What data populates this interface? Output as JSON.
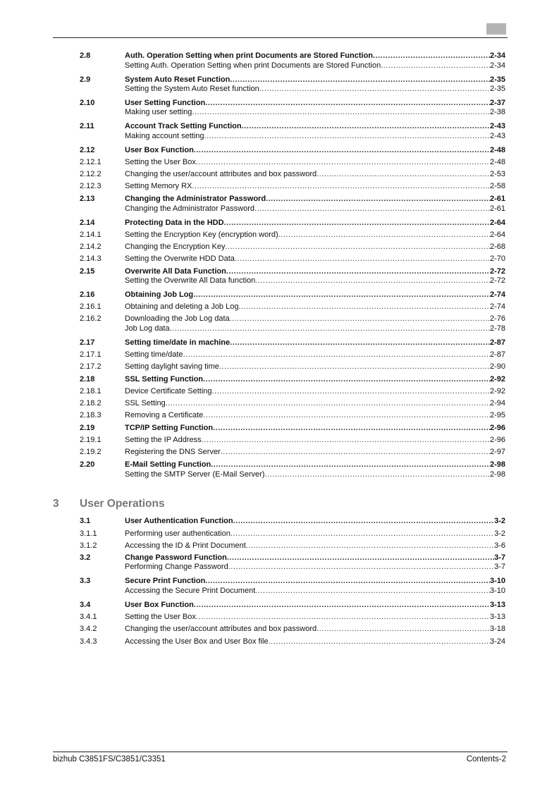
{
  "header": {
    "tab_color": "#b4b4b4"
  },
  "toc_ch2": [
    {
      "num": "2.8",
      "title": "Auth. Operation Setting when print Documents are Stored Function",
      "page": "2-34",
      "bold": true
    },
    {
      "num": "",
      "title": "Setting Auth. Operation Setting when print Documents are Stored Function",
      "page": "2-34",
      "bold": false
    },
    {
      "num": "2.9",
      "title": "System Auto Reset Function",
      "page": "2-35",
      "bold": true
    },
    {
      "num": "",
      "title": "Setting the System Auto Reset function",
      "page": "2-35",
      "bold": false
    },
    {
      "num": "2.10",
      "title": "User Setting Function",
      "page": "2-37",
      "bold": true
    },
    {
      "num": "",
      "title": "Making user setting",
      "page": "2-38",
      "bold": false
    },
    {
      "num": "2.11",
      "title": "Account Track Setting Function",
      "page": "2-43",
      "bold": true
    },
    {
      "num": "",
      "title": "Making account setting",
      "page": "2-43",
      "bold": false
    },
    {
      "num": "2.12",
      "title": "User Box Function",
      "page": "2-48",
      "bold": true
    },
    {
      "num": "2.12.1",
      "title": "Setting the User Box",
      "page": "2-48",
      "bold": false
    },
    {
      "num": "2.12.2",
      "title": "Changing the user/account attributes and box password",
      "page": "2-53",
      "bold": false
    },
    {
      "num": "2.12.3",
      "title": "Setting Memory RX",
      "page": "2-58",
      "bold": false
    },
    {
      "num": "2.13",
      "title": "Changing the Administrator Password",
      "page": "2-61",
      "bold": true
    },
    {
      "num": "",
      "title": "Changing the Administrator Password",
      "page": "2-61",
      "bold": false
    },
    {
      "num": "2.14",
      "title": "Protecting Data in the HDD",
      "page": "2-64",
      "bold": true
    },
    {
      "num": "2.14.1",
      "title": "Setting the Encryption Key (encryption word)",
      "page": "2-64",
      "bold": false
    },
    {
      "num": "2.14.2",
      "title": "Changing the Encryption Key",
      "page": "2-68",
      "bold": false
    },
    {
      "num": "2.14.3",
      "title": "Setting the Overwrite HDD Data",
      "page": "2-70",
      "bold": false
    },
    {
      "num": "2.15",
      "title": "Overwrite All Data Function",
      "page": "2-72",
      "bold": true
    },
    {
      "num": "",
      "title": "Setting the Overwrite All Data function",
      "page": "2-72",
      "bold": false
    },
    {
      "num": "2.16",
      "title": "Obtaining Job Log",
      "page": "2-74",
      "bold": true
    },
    {
      "num": "2.16.1",
      "title": "Obtaining and deleting a Job Log",
      "page": "2-74",
      "bold": false
    },
    {
      "num": "2.16.2",
      "title": "Downloading the Job Log data",
      "page": "2-76",
      "bold": false
    },
    {
      "num": "",
      "title": "Job Log data",
      "page": "2-78",
      "bold": false
    },
    {
      "num": "2.17",
      "title": "Setting time/date in machine",
      "page": "2-87",
      "bold": true
    },
    {
      "num": "2.17.1",
      "title": "Setting time/date",
      "page": "2-87",
      "bold": false
    },
    {
      "num": "2.17.2",
      "title": "Setting daylight saving time",
      "page": "2-90",
      "bold": false
    },
    {
      "num": "2.18",
      "title": "SSL Setting Function",
      "page": "2-92",
      "bold": true
    },
    {
      "num": "2.18.1",
      "title": "Device Certificate Setting",
      "page": "2-92",
      "bold": false
    },
    {
      "num": "2.18.2",
      "title": "SSL Setting",
      "page": "2-94",
      "bold": false
    },
    {
      "num": "2.18.3",
      "title": "Removing a Certificate",
      "page": "2-95",
      "bold": false
    },
    {
      "num": "2.19",
      "title": "TCP/IP Setting Function",
      "page": "2-96",
      "bold": true
    },
    {
      "num": "2.19.1",
      "title": "Setting the IP Address",
      "page": "2-96",
      "bold": false
    },
    {
      "num": "2.19.2",
      "title": "Registering the DNS Server",
      "page": "2-97",
      "bold": false
    },
    {
      "num": "2.20",
      "title": "E-Mail Setting Function",
      "page": "2-98",
      "bold": true
    },
    {
      "num": "",
      "title": "Setting the SMTP Server (E-Mail Server)",
      "page": "2-98",
      "bold": false
    }
  ],
  "chapter3": {
    "number": "3",
    "title": "User Operations",
    "color": "#777777"
  },
  "toc_ch3": [
    {
      "num": "3.1",
      "title": "User Authentication Function",
      "page": "3-2",
      "bold": true
    },
    {
      "num": "3.1.1",
      "title": "Performing user authentication",
      "page": "3-2",
      "bold": false
    },
    {
      "num": "3.1.2",
      "title": "Accessing the ID & Print Document",
      "page": "3-6",
      "bold": false
    },
    {
      "num": "3.2",
      "title": "Change Password Function",
      "page": "3-7",
      "bold": true
    },
    {
      "num": "",
      "title": "Performing Change Password",
      "page": "3-7",
      "bold": false
    },
    {
      "num": "3.3",
      "title": "Secure Print Function",
      "page": "3-10",
      "bold": true
    },
    {
      "num": "",
      "title": "Accessing the Secure Print Document",
      "page": "3-10",
      "bold": false
    },
    {
      "num": "3.4",
      "title": "User Box Function",
      "page": "3-13",
      "bold": true
    },
    {
      "num": "3.4.1",
      "title": "Setting the User Box",
      "page": "3-13",
      "bold": false
    },
    {
      "num": "3.4.2",
      "title": "Changing the user/account attributes and box password",
      "page": "3-18",
      "bold": false
    },
    {
      "num": "3.4.3",
      "title": "Accessing the User Box and User Box file",
      "page": "3-24",
      "bold": false
    }
  ],
  "footer": {
    "model": "bizhub C3851FS/C3851/C3351",
    "page": "Contents-2"
  }
}
